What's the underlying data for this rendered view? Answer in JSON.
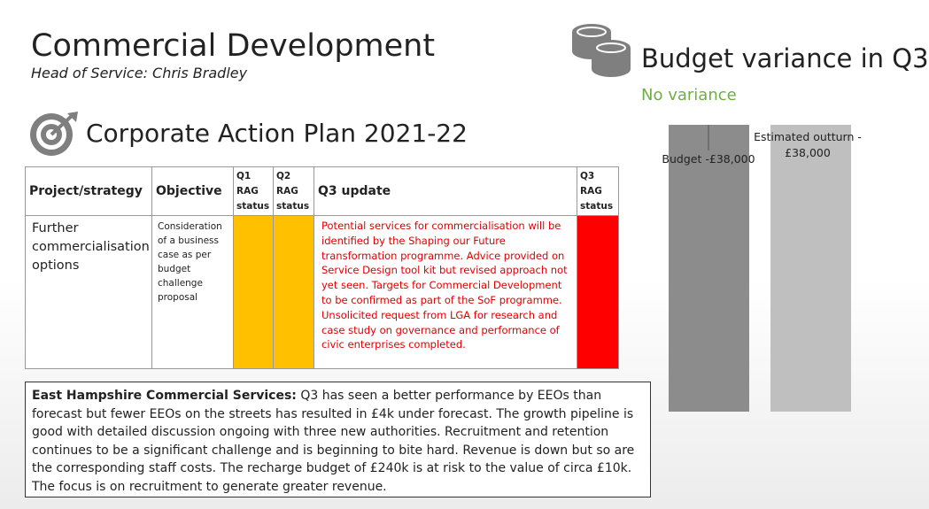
{
  "header": {
    "title": "Commercial Development",
    "subtitle": "Head of Service: Chris Bradley"
  },
  "budget": {
    "heading": "Budget variance in Q3",
    "status": "No variance"
  },
  "action_plan": {
    "title": "Corporate Action Plan 2021-22"
  },
  "table": {
    "headers": [
      "Project/strategy",
      "Objective",
      "Q1 RAG status",
      "Q2 RAG status",
      "Q3 update",
      "Q3 RAG status"
    ],
    "rows": [
      [
        "Further commercialisation options",
        "Consideration of a business case as per budget challenge proposal",
        "",
        "",
        "Potential services for commercialisation will be identified by the Shaping our Future transformation programme. Advice provided on Service Design tool kit but revised approach not yet seen. Targets for Commercial Development to be confirmed as part of the SoF programme. Unsolicited request from LGA for research and case study on governance and performance of civic enterprises completed.",
        ""
      ]
    ]
  },
  "summary": {
    "lead": "East Hampshire Commercial Services:",
    "text": "Q3 has seen a better performance by EEOs than forecast but fewer EEOs on the streets has resulted in £4k under forecast. The growth pipeline is good with detailed discussion ongoing with three new authorities. Recruitment and retention continues to be a significant challenge and is beginning to bite hard. Revenue is down but so are the corresponding staff costs. The recharge budget of £240k is at risk to the value of circa £10k. The focus is on recruitment to generate greater revenue."
  },
  "chart_data": {
    "type": "bar",
    "categories": [
      "Budget",
      "Estimated outturn"
    ],
    "values": [
      38000,
      38000
    ],
    "value_labels": [
      "Budget -£38,000",
      "Estimated outturn - £38,000"
    ],
    "colors": [
      "#8c8c8c",
      "#bfbfbf"
    ]
  }
}
